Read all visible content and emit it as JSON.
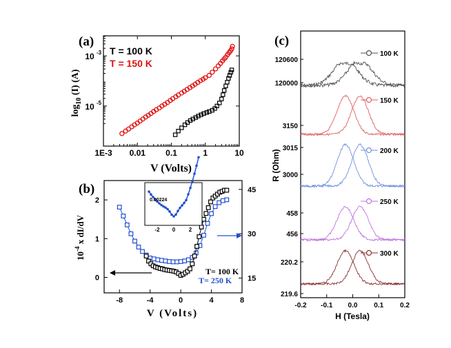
{
  "chart_data": [
    {
      "panel": "(a)",
      "type": "scatter",
      "xscale": "log",
      "yscale": "log",
      "xlabel": "V (Volts)",
      "ylabel_main": "log",
      "ylabel_sub": "10",
      "ylabel_rest": " (I) (A)",
      "xlim": [
        0.001,
        10
      ],
      "ylim_exp": [
        -6.6,
        -2.2
      ],
      "xticks": [
        {
          "v": 0.001,
          "t": "1E-3"
        },
        {
          "v": 0.01,
          "t": "0.01"
        },
        {
          "v": 0.1,
          "t": "0.1"
        },
        {
          "v": 1,
          "t": "1"
        },
        {
          "v": 10,
          "t": "10"
        }
      ],
      "yticks": [
        {
          "e": -3,
          "t": "10"
        },
        {
          "e": -5,
          "t": "10"
        }
      ],
      "yticks_exp": [
        "-3",
        "-5"
      ],
      "legend": [
        {
          "text": "T = 100 K",
          "color": "#000000"
        },
        {
          "text": "T = 150 K",
          "color": "#e01010"
        }
      ],
      "series": [
        {
          "name": "T = 150 K",
          "color": "#e01010",
          "marker": "circle",
          "x": [
            0.0035,
            0.0045,
            0.0055,
            0.0068,
            0.0082,
            0.01,
            0.012,
            0.0145,
            0.0175,
            0.021,
            0.025,
            0.03,
            0.036,
            0.044,
            0.053,
            0.064,
            0.077,
            0.093,
            0.11,
            0.135,
            0.16,
            0.2,
            0.24,
            0.29,
            0.35,
            0.42,
            0.5,
            0.6,
            0.72,
            0.86,
            1.0,
            1.3,
            1.6,
            2.0,
            2.4,
            2.8,
            3.2,
            3.6,
            4.0,
            4.5,
            5.0,
            5.5,
            6.0,
            6.3
          ],
          "logy": [
            -6.1,
            -6.0,
            -5.92,
            -5.83,
            -5.75,
            -5.68,
            -5.6,
            -5.52,
            -5.44,
            -5.37,
            -5.3,
            -5.22,
            -5.15,
            -5.08,
            -5.0,
            -4.93,
            -4.86,
            -4.78,
            -4.71,
            -4.63,
            -4.56,
            -4.48,
            -4.41,
            -4.34,
            -4.27,
            -4.2,
            -4.13,
            -4.06,
            -3.99,
            -3.93,
            -3.87,
            -3.78,
            -3.65,
            -3.52,
            -3.4,
            -3.3,
            -3.2,
            -3.12,
            -3.05,
            -2.95,
            -2.87,
            -2.8,
            -2.72,
            -2.62
          ]
        },
        {
          "name": "T = 100 K",
          "color": "#000000",
          "marker": "square",
          "x": [
            0.13,
            0.16,
            0.2,
            0.25,
            0.3,
            0.36,
            0.43,
            0.52,
            0.62,
            0.75,
            0.9,
            1.1,
            1.3,
            1.6,
            1.9,
            2.2,
            2.6,
            3.0,
            3.3,
            3.6,
            4.0,
            4.4,
            4.8,
            5.2,
            5.6,
            6.0
          ],
          "logy": [
            -6.15,
            -6.0,
            -5.87,
            -5.75,
            -5.66,
            -5.58,
            -5.52,
            -5.46,
            -5.4,
            -5.35,
            -5.3,
            -5.26,
            -5.22,
            -5.17,
            -5.1,
            -5.0,
            -4.88,
            -4.72,
            -4.55,
            -4.38,
            -4.2,
            -4.05,
            -3.9,
            -3.78,
            -3.66,
            -3.56
          ]
        }
      ]
    },
    {
      "panel": "(b)",
      "type": "scatter",
      "xlabel": "V  (Volts)",
      "ylabel": "10⁻⁴ x dI/dV",
      "ylabel_exp": "-4",
      "ylabel_base": "10",
      "ylabel_rest": " x dI/dV",
      "xlim": [
        -10,
        8
      ],
      "ylim_left": [
        -0.4,
        2.5
      ],
      "ylim_right": [
        10,
        48
      ],
      "xticks": [
        -8,
        -4,
        0,
        4,
        8
      ],
      "xtick_labels": [
        "-8",
        "-4",
        "0",
        "4",
        "8"
      ],
      "yticks_left": [
        0,
        1,
        2
      ],
      "ytick_labels_left": [
        "0",
        "1",
        "2"
      ],
      "yticks_right": [
        15,
        30,
        45
      ],
      "ytick_labels_right": [
        "15",
        "30",
        "45"
      ],
      "legend": [
        {
          "text": "T= 100 K",
          "color": "#000000"
        },
        {
          "text": "T= 250 K",
          "color": "#2050d0"
        }
      ],
      "inset_label": "0.00224",
      "inset_xticks": [
        "-2",
        "0",
        "2"
      ],
      "series": [
        {
          "name": "T= 250 K",
          "axis": "right",
          "color": "#2050d0",
          "marker": "square",
          "x": [
            -8.0,
            -7.5,
            -7.0,
            -6.5,
            -6.0,
            -5.5,
            -5.0,
            -4.5,
            -4.0,
            -3.5,
            -3.0,
            -2.5,
            -2.0,
            -1.5,
            -1.0,
            -0.5,
            0.0,
            0.5,
            1.0,
            1.5,
            2.0,
            2.5,
            3.0,
            3.5,
            4.0,
            4.5,
            5.0,
            5.5,
            6.0
          ],
          "y": [
            39.0,
            36.0,
            33.0,
            30.0,
            27.5,
            25.5,
            24.0,
            22.8,
            21.8,
            21.5,
            21.2,
            21.0,
            20.8,
            20.6,
            20.5,
            20.5,
            20.6,
            20.8,
            21.2,
            22.0,
            23.5,
            26.0,
            29.5,
            33.5,
            36.8,
            39.2,
            40.5,
            41.2,
            41.5
          ]
        },
        {
          "name": "T= 100 K",
          "axis": "left",
          "color": "#000000",
          "marker": "square",
          "x": [
            -4.5,
            -4.2,
            -3.9,
            -3.6,
            -3.3,
            -3.0,
            -2.7,
            -2.4,
            -2.1,
            -1.8,
            -1.5,
            -1.2,
            -0.9,
            -0.6,
            -0.3,
            0.0,
            0.3,
            0.6,
            0.9,
            1.2,
            1.5,
            1.8,
            2.1,
            2.4,
            2.7,
            3.0,
            3.3,
            3.6,
            3.9,
            4.2,
            4.5,
            4.8,
            5.1,
            5.4,
            5.7,
            6.0
          ],
          "y": [
            0.55,
            0.42,
            0.35,
            0.3,
            0.27,
            0.25,
            0.23,
            0.22,
            0.2,
            0.19,
            0.18,
            0.17,
            0.16,
            0.14,
            0.1,
            0.05,
            0.08,
            0.12,
            0.16,
            0.22,
            0.35,
            0.55,
            0.8,
            1.05,
            1.3,
            1.5,
            1.65,
            1.8,
            1.95,
            2.05,
            2.1,
            2.15,
            2.2,
            2.22,
            2.25,
            2.25
          ]
        }
      ]
    },
    {
      "panel": "(c)",
      "type": "line",
      "xlabel": "H (Tesla)",
      "ylabel": "R (Ohm)",
      "xlim": [
        -0.2,
        0.2
      ],
      "xticks": [
        -0.2,
        -0.1,
        0.0,
        0.1,
        0.2
      ],
      "xtick_labels": [
        "-0.2",
        "-0.1",
        "0.0",
        "0.1",
        "0.2"
      ],
      "series": [
        {
          "name": "100 K",
          "color": "#505050",
          "ticks": [
            "120600",
            "120000"
          ],
          "peak_shape": "broad-double"
        },
        {
          "name": "150 K",
          "color": "#e06060",
          "ticks": [
            "3150"
          ],
          "peak_shape": "double"
        },
        {
          "name": "200 K",
          "color": "#7090e0",
          "ticks": [
            "3015",
            "3000"
          ],
          "peak_shape": "double"
        },
        {
          "name": "250 K",
          "color": "#c070e0",
          "ticks": [
            "458",
            "456"
          ],
          "peak_shape": "double"
        },
        {
          "name": "300 K",
          "color": "#8a3030",
          "ticks": [
            "220.2",
            "219.6"
          ],
          "peak_shape": "double"
        }
      ]
    }
  ]
}
